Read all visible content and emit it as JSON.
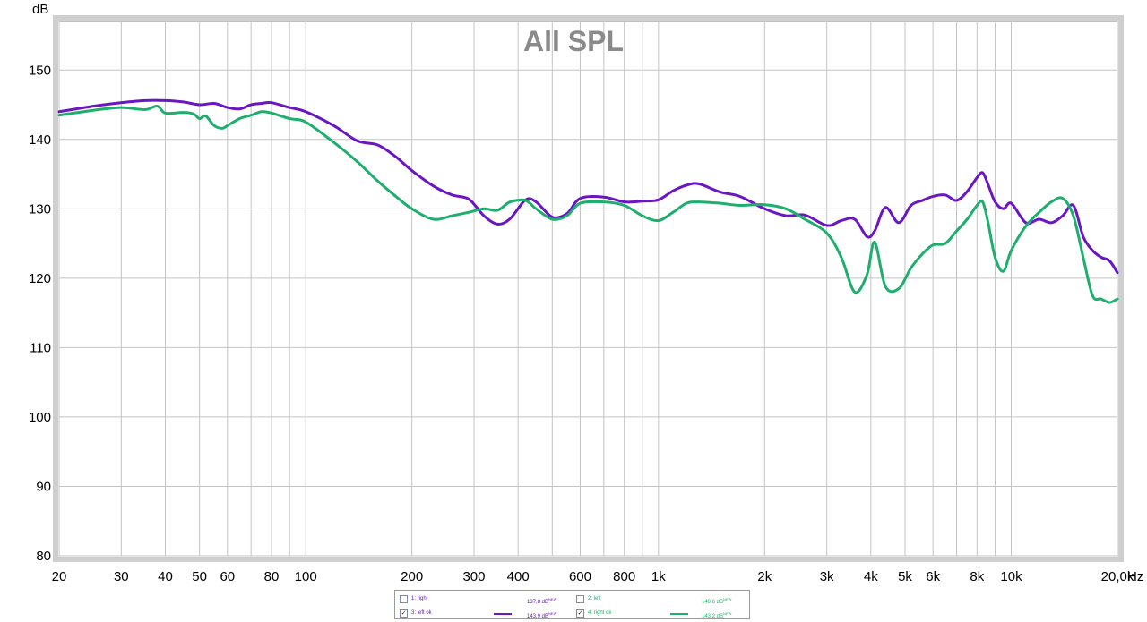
{
  "chart_data": {
    "type": "line",
    "title": "All SPL",
    "ylabel": "dB",
    "xlabel": "Hz",
    "x_scale": "log",
    "xlim": [
      20,
      20000
    ],
    "ylim": [
      80,
      157
    ],
    "yticks": [
      80,
      90,
      100,
      110,
      120,
      130,
      140,
      150
    ],
    "ytick_labels": [
      "80",
      "90",
      "100",
      "110",
      "120",
      "130",
      "140",
      "150"
    ],
    "xticks": [
      20,
      30,
      40,
      50,
      60,
      80,
      100,
      200,
      300,
      400,
      600,
      800,
      1000,
      2000,
      3000,
      4000,
      5000,
      6000,
      8000,
      10000,
      20000
    ],
    "xtick_labels": [
      "20",
      "30",
      "40",
      "50",
      "60",
      "80",
      "100",
      "200",
      "300",
      "400",
      "600",
      "800",
      "1k",
      "2k",
      "3k",
      "4k",
      "5k",
      "6k",
      "8k",
      "10k",
      "20,0k"
    ],
    "grid": true,
    "series": [
      {
        "name": "3: left ok",
        "color": "#6a16c2",
        "x": [
          20,
          25,
          30,
          35,
          40,
          45,
          50,
          55,
          60,
          65,
          70,
          75,
          80,
          90,
          100,
          120,
          140,
          160,
          180,
          200,
          230,
          260,
          290,
          320,
          350,
          380,
          420,
          450,
          500,
          550,
          600,
          700,
          800,
          900,
          1000,
          1100,
          1200,
          1300,
          1500,
          1700,
          2000,
          2300,
          2600,
          3000,
          3300,
          3600,
          3900,
          4100,
          4400,
          4800,
          5200,
          5600,
          6000,
          6500,
          7000,
          7500,
          8000,
          8300,
          8600,
          9000,
          9500,
          10000,
          11000,
          12000,
          13000,
          14000,
          15000,
          16000,
          17000,
          18000,
          19000,
          20000
        ],
        "values": [
          144.0,
          144.8,
          145.3,
          145.6,
          145.6,
          145.4,
          145.0,
          145.2,
          144.6,
          144.4,
          145.0,
          145.2,
          145.3,
          144.6,
          144.0,
          142.0,
          139.8,
          139.2,
          137.5,
          135.5,
          133.3,
          132.0,
          131.4,
          129.0,
          127.8,
          128.6,
          131.3,
          131.0,
          128.8,
          129.3,
          131.5,
          131.7,
          131.0,
          131.1,
          131.3,
          132.6,
          133.4,
          133.6,
          132.4,
          131.8,
          130.0,
          129.0,
          129.1,
          127.6,
          128.3,
          128.5,
          126.0,
          126.8,
          130.2,
          128.0,
          130.5,
          131.2,
          131.8,
          132.0,
          131.2,
          132.5,
          134.5,
          135.2,
          133.5,
          131.0,
          130.0,
          130.8,
          128.0,
          128.5,
          128.0,
          129.0,
          130.5,
          126.0,
          124.0,
          123.0,
          122.5,
          120.8
        ]
      },
      {
        "name": "4: right ok",
        "color": "#1eae6e",
        "x": [
          20,
          25,
          30,
          35,
          38,
          40,
          45,
          48,
          50,
          52,
          55,
          58,
          60,
          65,
          70,
          75,
          80,
          90,
          100,
          120,
          140,
          160,
          180,
          200,
          230,
          260,
          290,
          320,
          350,
          380,
          420,
          450,
          500,
          550,
          600,
          700,
          800,
          900,
          1000,
          1100,
          1200,
          1300,
          1500,
          1700,
          2000,
          2300,
          2600,
          3000,
          3300,
          3600,
          3900,
          4100,
          4400,
          4800,
          5200,
          5600,
          6000,
          6500,
          7000,
          7500,
          8000,
          8300,
          8600,
          9000,
          9500,
          10000,
          11000,
          12000,
          13000,
          14000,
          15000,
          16000,
          17000,
          18000,
          19000,
          20000
        ],
        "values": [
          143.5,
          144.2,
          144.6,
          144.3,
          144.8,
          143.8,
          143.9,
          143.7,
          143.0,
          143.4,
          142.0,
          141.6,
          142.0,
          143.0,
          143.5,
          144.0,
          143.8,
          143.0,
          142.5,
          139.6,
          136.8,
          134.0,
          131.8,
          130.0,
          128.5,
          129.0,
          129.5,
          130.0,
          129.8,
          131.0,
          131.2,
          130.0,
          128.5,
          129.0,
          130.8,
          131.0,
          130.5,
          129.0,
          128.3,
          129.5,
          130.8,
          131.0,
          130.8,
          130.5,
          130.6,
          130.0,
          128.5,
          126.5,
          123.0,
          118.0,
          120.5,
          125.2,
          118.8,
          118.5,
          121.5,
          123.5,
          124.8,
          125.0,
          126.8,
          128.5,
          130.5,
          131.0,
          128.0,
          123.0,
          121.0,
          124.0,
          127.5,
          129.5,
          131.0,
          131.5,
          129.0,
          123.0,
          117.5,
          117.0,
          116.5,
          117.0
        ]
      }
    ],
    "legend": [
      {
        "label": "1: right",
        "checked": false,
        "value": "137,8 dB",
        "badge": "NEW",
        "color": "#6a16c2",
        "show_swatch": false
      },
      {
        "label": "2: left",
        "checked": false,
        "value": "140,6 dB",
        "badge": "NEW",
        "color": "#1eae6e",
        "show_swatch": false
      },
      {
        "label": "3: left ok",
        "checked": true,
        "value": "143,9 dB",
        "badge": "NEW",
        "color": "#6a16c2",
        "show_swatch": true
      },
      {
        "label": "4: right ok",
        "checked": true,
        "value": "143,2 dB",
        "badge": "NEW",
        "color": "#1eae6e",
        "show_swatch": true
      }
    ],
    "legend_position": "bottom-center"
  }
}
